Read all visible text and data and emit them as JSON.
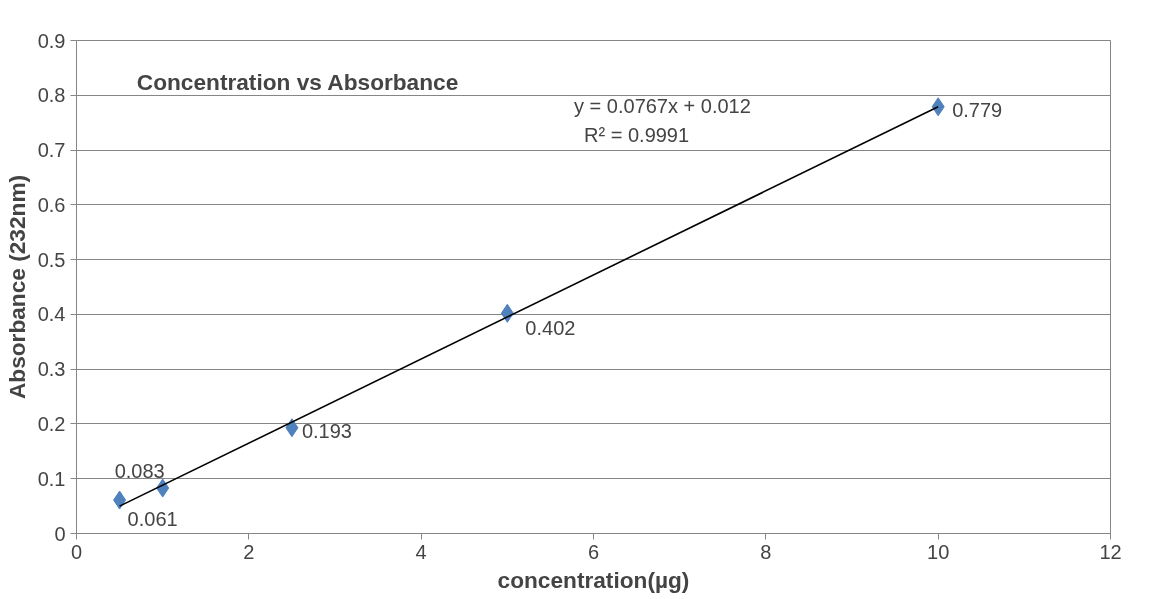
{
  "chart_data": {
    "type": "scatter",
    "title": "Concentration vs Absorbance",
    "xlabel": "concentration(µg)",
    "ylabel": "Absorbance (232nm)",
    "x": [
      0.5,
      1,
      2.5,
      5,
      10
    ],
    "series": [
      {
        "color": "#4f81bd",
        "values": [
          0.061,
          0.083,
          0.193,
          0.402,
          0.779
        ],
        "marker": "diamond",
        "data_labels": true
      },
      {
        "type": "line",
        "color": "#000000",
        "x": [
          0.5,
          10
        ],
        "values": [
          0.05,
          0.779
        ],
        "line_style": "solid",
        "marker": "none"
      }
    ],
    "annotations": [
      "y = 0.0767x + 0.012",
      "R² = 0.9991"
    ],
    "xlim": [
      0,
      12
    ],
    "xticks": [
      0,
      2,
      4,
      6,
      8,
      10,
      12
    ],
    "ylim": [
      0,
      0.9
    ],
    "yticks": [
      0,
      0.1,
      0.2,
      0.3,
      0.4,
      0.5,
      0.6,
      0.7,
      0.8,
      0.9
    ],
    "grid": "y"
  }
}
